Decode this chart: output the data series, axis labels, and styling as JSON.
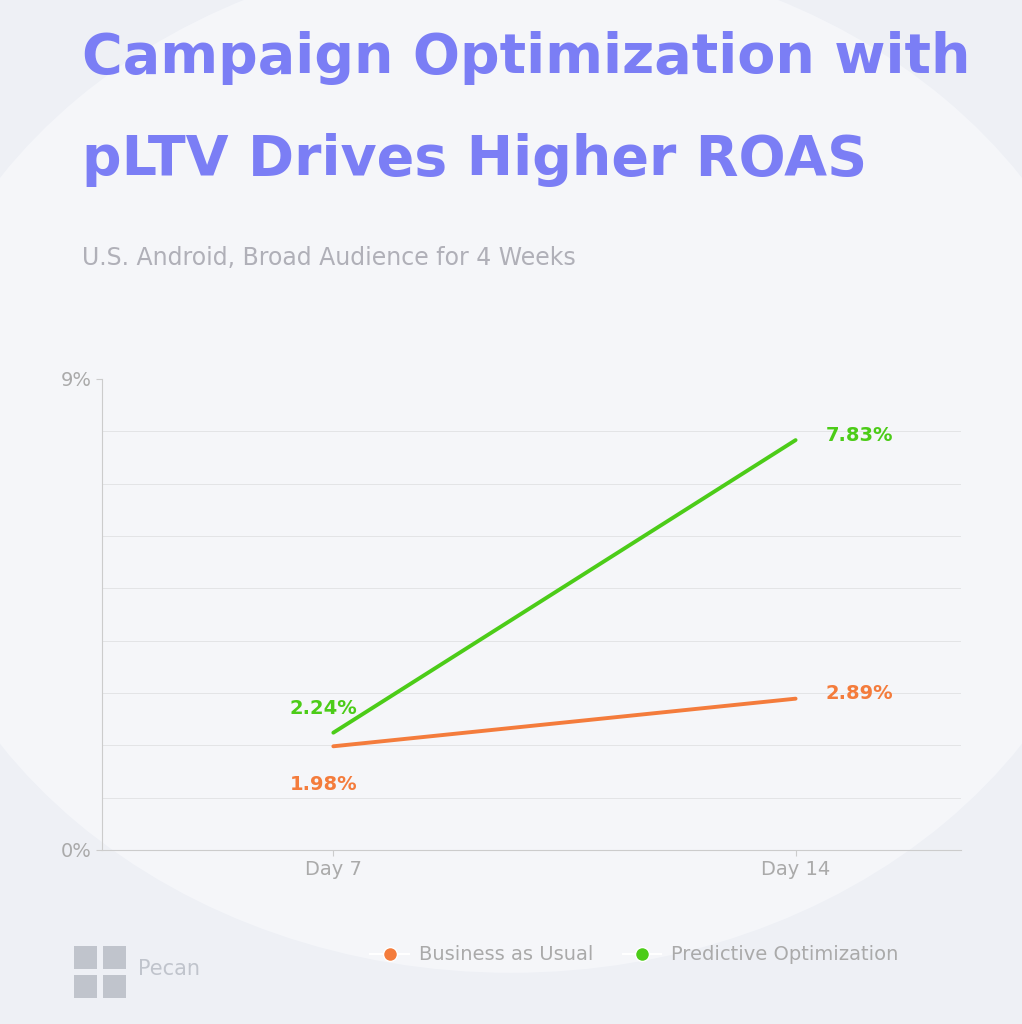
{
  "title_line1": "Campaign Optimization with",
  "title_line2": "pLTV Drives Higher ROAS",
  "subtitle": "U.S. Android, Broad Audience for 4 Weeks",
  "title_color": "#7b7ef5",
  "subtitle_color": "#b0b0b8",
  "background_color": "#eef0f5",
  "x_labels": [
    "Day 7",
    "Day 14"
  ],
  "x_values": [
    7,
    14
  ],
  "bau_values": [
    1.98,
    2.89
  ],
  "pred_values": [
    2.24,
    7.83
  ],
  "bau_color": "#f47c3c",
  "pred_color": "#4ccc18",
  "bau_label": "Business as Usual",
  "pred_label": "Predictive Optimization",
  "bau_annotations": [
    "1.98%",
    "2.89%"
  ],
  "pred_annotations": [
    "2.24%",
    "7.83%"
  ],
  "ylim": [
    0,
    9
  ],
  "axis_color": "#cccccc",
  "tick_color": "#aaaaaa",
  "line_width": 2.8,
  "annotation_fontsize": 14,
  "title_fontsize": 40,
  "subtitle_fontsize": 17,
  "legend_fontsize": 14,
  "axis_label_fontsize": 14
}
